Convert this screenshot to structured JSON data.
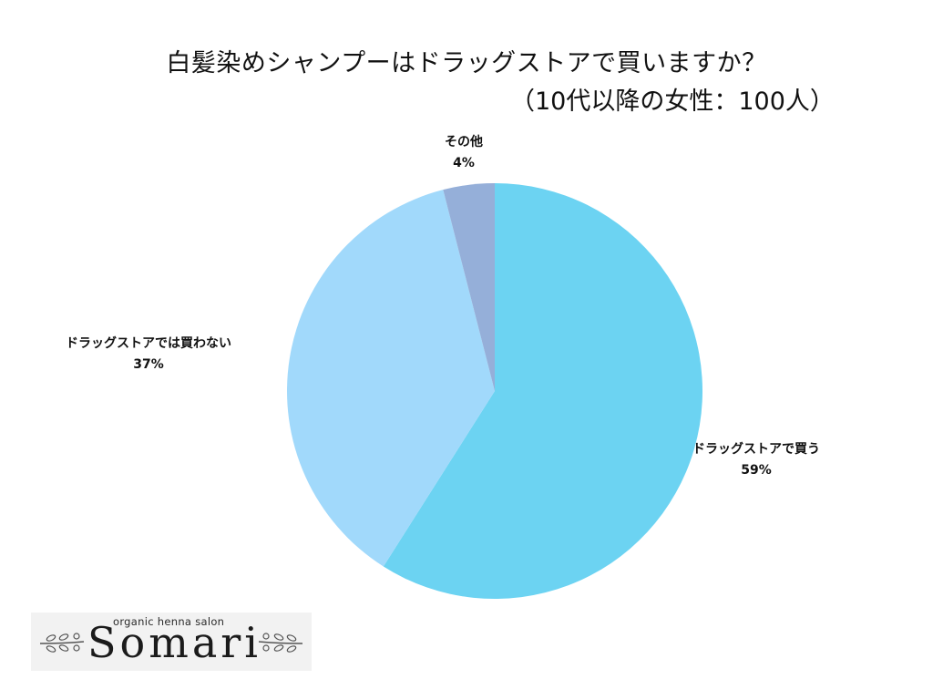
{
  "chart_data": {
    "type": "pie",
    "title": "白髪染めシャンプーはドラッグストアで買いますか？",
    "subtitle": "（10代以降の女性：100人）",
    "start_angle_deg": 0,
    "direction": "clockwise",
    "slices": [
      {
        "label": "ドラッグストアで買う",
        "value": 59,
        "value_label": "59%",
        "color": "#6cd3f2"
      },
      {
        "label": "ドラッグストアでは買わない",
        "value": 37,
        "value_label": "37%",
        "color": "#a1d9fb"
      },
      {
        "label": "その他",
        "value": 4,
        "value_label": "4%",
        "color": "#95afd9"
      }
    ]
  },
  "logo": {
    "subtitle": "organic henna salon",
    "name": "Somari"
  }
}
